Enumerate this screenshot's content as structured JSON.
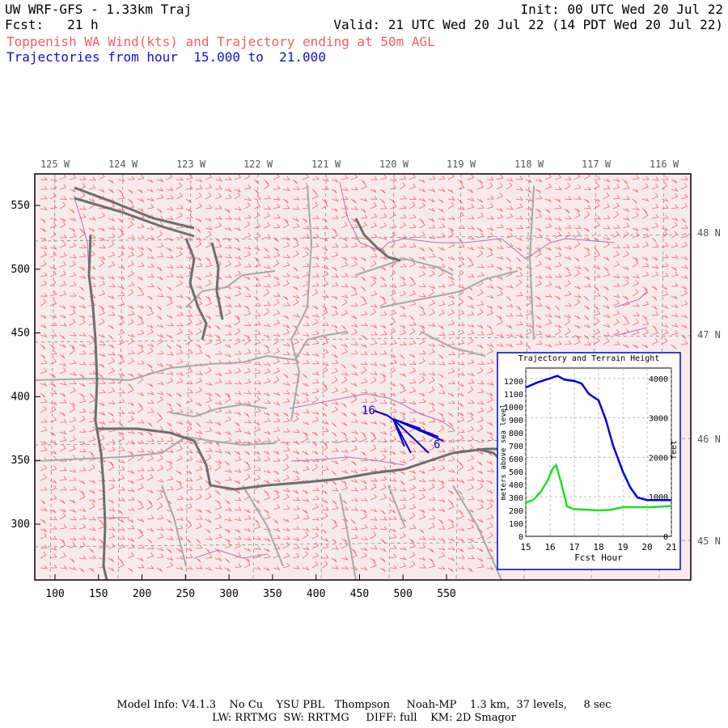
{
  "header": {
    "model_title": "UW WRF-GFS - 1.33km Traj",
    "init": "Init: 00 UTC Wed 20 Jul 22",
    "fcst": "Fcst:   21 h",
    "valid": "Valid: 21 UTC Wed 20 Jul 22 (14 PDT Wed 20 Jul 22)",
    "field_title": "Toppenish WA Wind(kts) and Trajectory ending at 50m AGL",
    "traj_range": "Trajectories from hour  15.000 to  21.000"
  },
  "map": {
    "lon_labels": [
      "125 W",
      "124 W",
      "123 W",
      "122 W",
      "121 W",
      "120 W",
      "119 W",
      "118 W",
      "117 W",
      "116 W"
    ],
    "lat_labels": [
      "48 N",
      "47 N",
      "46 N",
      "45 N"
    ],
    "x_ticks": [
      "100",
      "150",
      "200",
      "250",
      "300",
      "350",
      "400",
      "450",
      "500",
      "550"
    ],
    "y_ticks": [
      "550",
      "500",
      "450",
      "400",
      "350",
      "300"
    ],
    "traj_start_label": "16",
    "traj_end_label": "6",
    "colors": {
      "wind_barbs": "#ee6666",
      "coast": "#707070",
      "borders": "#a8a8a8",
      "counties": "#b070c0",
      "trajectory": "#0000cc",
      "background": "#f8eaea"
    }
  },
  "inset": {
    "title": "Trajectory and Terrain Height",
    "xlabel": "Fcst Hour",
    "ylabel_left": "meters above sea level",
    "ylabel_right": "feet",
    "x_ticks": [
      "15",
      "16",
      "17",
      "18",
      "19",
      "20",
      "21"
    ],
    "y_left_ticks": [
      "0",
      "100",
      "200",
      "300",
      "400",
      "500",
      "600",
      "700",
      "800",
      "900",
      "1000",
      "1100",
      "1200"
    ],
    "y_right_ticks": [
      "0",
      "1000",
      "2000",
      "3000",
      "4000"
    ]
  },
  "chart_data": {
    "type": "line",
    "title": "Trajectory and Terrain Height",
    "xlabel": "Fcst Hour",
    "ylabel": "meters above sea level",
    "xlim": [
      15,
      21
    ],
    "ylim": [
      0,
      1300
    ],
    "series": [
      {
        "color": "#0000dd",
        "x": [
          15,
          15.5,
          16,
          16.3,
          16.6,
          17,
          17.3,
          17.6,
          18,
          18.3,
          18.6,
          19,
          19.3,
          19.6,
          20,
          20.5,
          21
        ],
        "values": [
          1150,
          1190,
          1220,
          1240,
          1210,
          1200,
          1180,
          1100,
          1050,
          900,
          700,
          500,
          380,
          300,
          280,
          280,
          280
        ]
      },
      {
        "color": "#22dd22",
        "x": [
          15,
          15.3,
          15.6,
          15.9,
          16.1,
          16.25,
          16.45,
          16.7,
          17,
          17.5,
          18,
          18.5,
          19,
          19.5,
          20,
          20.5,
          21
        ],
        "values": [
          260,
          280,
          340,
          430,
          520,
          550,
          420,
          230,
          210,
          205,
          200,
          205,
          225,
          225,
          225,
          228,
          235
        ]
      }
    ]
  },
  "footer": {
    "line1": "Model Info: V4.1.3    No Cu    YSU PBL   Thompson     Noah-MP    1.3 km,  37 levels,     8 sec",
    "line2": "LW: RRTMG  SW: RRTMG     DIFF: full    KM: 2D Smagor"
  }
}
